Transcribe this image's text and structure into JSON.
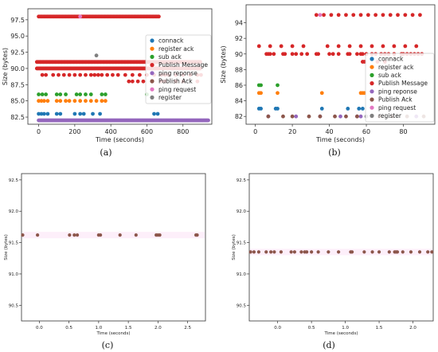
{
  "series_colors": {
    "connack": "#1f77b4",
    "register ack": "#ff7f0e",
    "sub ack": "#2ca02c",
    "Publish Message": "#d62728",
    "ping reponse": "#9467bd",
    "Publish Ack": "#8c564b",
    "ping request": "#e377c2",
    "register": "#7f7f7f"
  },
  "chart_data": [
    {
      "type": "scatter",
      "caption": "(a)",
      "xlabel": "Time (seconds)",
      "ylabel": "Size (bytes)",
      "xlim": [
        -60,
        960
      ],
      "ylim": [
        81.4,
        99.2
      ],
      "xticks": [
        0,
        200,
        400,
        600,
        800
      ],
      "yticks": [
        82.5,
        85.0,
        87.5,
        90.0,
        92.5,
        95.0,
        97.5
      ],
      "ytick_labels": [
        "82.5",
        "85.0",
        "87.5",
        "90.0",
        "92.5",
        "95.0",
        "97.5"
      ],
      "grid": false,
      "legend_position": "right",
      "legend": [
        "connack",
        "register ack",
        "sub ack",
        "Publish Message",
        "ping reponse",
        "Publish Ack",
        "ping request",
        "register"
      ],
      "series": [
        {
          "name": "Publish Message",
          "ranges": [
            [
              0,
              670,
              98,
              6
            ],
            [
              -10,
              900,
              91,
              6
            ],
            [
              -10,
              900,
              90,
              6
            ]
          ],
          "points": [
            [
              20,
              89
            ],
            [
              40,
              89
            ],
            [
              80,
              89
            ],
            [
              110,
              89
            ],
            [
              140,
              89
            ],
            [
              170,
              89
            ],
            [
              200,
              89
            ],
            [
              230,
              89
            ],
            [
              260,
              89
            ],
            [
              290,
              89
            ],
            [
              310,
              89
            ],
            [
              330,
              89
            ],
            [
              350,
              89
            ],
            [
              380,
              89
            ],
            [
              410,
              89
            ],
            [
              440,
              89
            ],
            [
              480,
              89
            ],
            [
              520,
              89
            ],
            [
              560,
              89
            ],
            [
              600,
              89
            ],
            [
              640,
              89
            ],
            [
              680,
              89
            ],
            [
              700,
              89
            ],
            [
              720,
              89
            ],
            [
              760,
              89
            ],
            [
              800,
              89
            ],
            [
              840,
              89
            ],
            [
              880,
              89
            ],
            [
              900,
              89
            ],
            [
              500,
              88
            ],
            [
              520,
              88
            ],
            [
              550,
              88
            ],
            [
              580,
              88
            ],
            [
              680,
              88
            ],
            [
              700,
              88
            ],
            [
              760,
              88
            ],
            [
              800,
              88
            ],
            [
              880,
              88
            ]
          ]
        },
        {
          "name": "sub ack",
          "points": [
            [
              0,
              86
            ],
            [
              20,
              86
            ],
            [
              40,
              86
            ],
            [
              100,
              86
            ],
            [
              120,
              86
            ],
            [
              150,
              86
            ],
            [
              210,
              86
            ],
            [
              230,
              86
            ],
            [
              260,
              86
            ],
            [
              290,
              86
            ],
            [
              350,
              86
            ],
            [
              370,
              86
            ],
            [
              600,
              86
            ]
          ]
        },
        {
          "name": "register ack",
          "points": [
            [
              0,
              85
            ],
            [
              15,
              85
            ],
            [
              30,
              85
            ],
            [
              50,
              85
            ],
            [
              100,
              85
            ],
            [
              120,
              85
            ],
            [
              150,
              85
            ],
            [
              170,
              85
            ],
            [
              200,
              85
            ],
            [
              230,
              85
            ],
            [
              260,
              85
            ],
            [
              290,
              85
            ],
            [
              320,
              85
            ],
            [
              350,
              85
            ],
            [
              370,
              85
            ]
          ]
        },
        {
          "name": "connack",
          "points": [
            [
              0,
              83
            ],
            [
              15,
              83
            ],
            [
              30,
              83
            ],
            [
              50,
              83
            ],
            [
              100,
              83
            ],
            [
              120,
              83
            ],
            [
              200,
              83
            ],
            [
              230,
              83
            ],
            [
              250,
              83
            ],
            [
              300,
              83
            ],
            [
              340,
              83
            ],
            [
              640,
              83
            ],
            [
              660,
              83
            ]
          ]
        },
        {
          "name": "ping reponse",
          "ranges": [
            [
              0,
              940,
              82,
              4
            ]
          ]
        },
        {
          "name": "register",
          "points": [
            [
              320,
              92
            ]
          ]
        },
        {
          "name": "ping request",
          "points": [
            [
              230,
              98
            ]
          ]
        }
      ]
    },
    {
      "type": "scatter",
      "caption": "(b)",
      "xlabel": "Time (seconds)",
      "ylabel": "Size (bytes)",
      "xlim": [
        -5,
        97
      ],
      "ylim": [
        81,
        96.3
      ],
      "xticks": [
        0,
        20,
        40,
        60,
        80
      ],
      "yticks": [
        82,
        84,
        86,
        88,
        90,
        92,
        94
      ],
      "ytick_labels": [
        "82",
        "84",
        "86",
        "88",
        "90",
        "92",
        "94"
      ],
      "grid": false,
      "legend_position": "right",
      "legend": [
        "connack",
        "register ack",
        "sub ack",
        "Publish Message",
        "ping reponse",
        "Publish Ack",
        "ping request",
        "register"
      ],
      "series": [
        {
          "name": "Publish Message",
          "ranges": [
            [
              33,
              92,
              95,
              4
            ],
            [
              2,
              26,
              91,
              6
            ],
            [
              39,
              92,
              91,
              6
            ]
          ],
          "points": [
            [
              6,
              90
            ],
            [
              7,
              90
            ],
            [
              8,
              90
            ],
            [
              10,
              90
            ],
            [
              15,
              90
            ],
            [
              16,
              90
            ],
            [
              20,
              90
            ],
            [
              22,
              90
            ],
            [
              25,
              90
            ],
            [
              28,
              90
            ],
            [
              33,
              90
            ],
            [
              34,
              90
            ],
            [
              40,
              90
            ],
            [
              42,
              90
            ],
            [
              45,
              90
            ],
            [
              50,
              90
            ],
            [
              51,
              90
            ],
            [
              55,
              90
            ],
            [
              57,
              90
            ],
            [
              58,
              90
            ],
            [
              60,
              90
            ],
            [
              63,
              90
            ],
            [
              65,
              90
            ],
            [
              68,
              90
            ],
            [
              70,
              90
            ],
            [
              72,
              90
            ],
            [
              75,
              90
            ],
            [
              79,
              90
            ],
            [
              80,
              90
            ],
            [
              82,
              90
            ],
            [
              84,
              90
            ],
            [
              86,
              90
            ],
            [
              88,
              90
            ],
            [
              90,
              90
            ],
            [
              58,
              89
            ],
            [
              59,
              89
            ],
            [
              66,
              89
            ],
            [
              70,
              89
            ]
          ]
        },
        {
          "name": "sub ack",
          "points": [
            [
              2,
              86
            ],
            [
              3,
              86
            ],
            [
              12,
              86
            ]
          ]
        },
        {
          "name": "register ack",
          "points": [
            [
              2,
              85
            ],
            [
              3,
              85
            ],
            [
              12,
              85
            ],
            [
              36,
              85
            ],
            [
              57,
              85
            ],
            [
              58,
              85
            ],
            [
              59,
              85
            ]
          ]
        },
        {
          "name": "connack",
          "points": [
            [
              2,
              83
            ],
            [
              3,
              83
            ],
            [
              11,
              83
            ],
            [
              12,
              83
            ],
            [
              36,
              83
            ],
            [
              50,
              83
            ],
            [
              56,
              83
            ],
            [
              58,
              83
            ]
          ]
        },
        {
          "name": "ping reponse",
          "points": [
            [
              7,
              82
            ],
            [
              22,
              82
            ],
            [
              35,
              82
            ],
            [
              46,
              82
            ],
            [
              55,
              82
            ],
            [
              57,
              82
            ],
            [
              87,
              82
            ]
          ]
        },
        {
          "name": "Publish Ack",
          "points": [
            [
              7,
              82
            ],
            [
              15,
              82
            ],
            [
              20,
              82
            ],
            [
              29,
              82
            ],
            [
              35,
              82
            ],
            [
              43,
              82
            ],
            [
              49,
              82
            ],
            [
              55,
              82
            ],
            [
              63,
              82
            ],
            [
              67,
              82
            ],
            [
              74,
              82
            ],
            [
              82,
              82
            ],
            [
              91,
              82
            ]
          ]
        },
        {
          "name": "register",
          "points": [
            [
              60,
              82
            ]
          ]
        },
        {
          "name": "ping request",
          "points": [
            [
              35,
              95
            ]
          ]
        }
      ]
    },
    {
      "type": "scatter",
      "caption": "(c)",
      "xlabel": "Time (seconds)",
      "ylabel": "Size (bytes)",
      "xlim": [
        -0.3,
        2.8
      ],
      "ylim": [
        90.25,
        92.6
      ],
      "xticks": [
        0.0,
        0.5,
        1.0,
        1.5,
        2.0,
        2.5
      ],
      "xtick_labels": [
        "0.0",
        "0.5",
        "1.0",
        "1.5",
        "2.0",
        "2.5"
      ],
      "yticks": [
        90.5,
        91.0,
        91.5,
        92.0,
        92.5
      ],
      "ytick_labels": [
        "90.5",
        "91.0",
        "91.5",
        "92.0",
        "92.5"
      ],
      "grid": false,
      "series": [
        {
          "name": "Publish Ack",
          "points": [
            [
              -0.28,
              91.62
            ],
            [
              -0.03,
              91.62
            ],
            [
              0.51,
              91.62
            ],
            [
              0.59,
              91.62
            ],
            [
              0.64,
              91.62
            ],
            [
              1.0,
              91.62
            ],
            [
              1.03,
              91.62
            ],
            [
              1.36,
              91.62
            ],
            [
              1.63,
              91.62
            ],
            [
              1.97,
              91.62
            ],
            [
              2.0,
              91.62
            ],
            [
              2.03,
              91.62
            ],
            [
              2.64,
              91.62
            ],
            [
              2.66,
              91.62
            ]
          ]
        }
      ]
    },
    {
      "type": "scatter",
      "caption": "(d)",
      "xlabel": "Time (seconds)",
      "ylabel": "Size (bytes)",
      "xlim": [
        -0.42,
        2.3
      ],
      "ylim": [
        90.25,
        92.6
      ],
      "xticks": [
        0.0,
        0.5,
        1.0,
        1.5,
        2.0
      ],
      "xtick_labels": [
        "0.0",
        "0.5",
        "1.0",
        "1.5",
        "2.0"
      ],
      "yticks": [
        90.5,
        91.0,
        91.5,
        92.0,
        92.5
      ],
      "ytick_labels": [
        "90.5",
        "91.0",
        "91.5",
        "92.0",
        "92.5"
      ],
      "grid": false,
      "series": [
        {
          "name": "Publish Ack",
          "points": [
            [
              -0.4,
              91.35
            ],
            [
              -0.35,
              91.35
            ],
            [
              -0.28,
              91.35
            ],
            [
              -0.17,
              91.35
            ],
            [
              -0.1,
              91.35
            ],
            [
              -0.05,
              91.35
            ],
            [
              0.05,
              91.35
            ],
            [
              0.2,
              91.35
            ],
            [
              0.25,
              91.35
            ],
            [
              0.35,
              91.35
            ],
            [
              0.4,
              91.35
            ],
            [
              0.43,
              91.35
            ],
            [
              0.5,
              91.35
            ],
            [
              0.6,
              91.35
            ],
            [
              0.75,
              91.35
            ],
            [
              0.9,
              91.35
            ],
            [
              1.08,
              91.35
            ],
            [
              1.1,
              91.35
            ],
            [
              1.28,
              91.35
            ],
            [
              1.4,
              91.35
            ],
            [
              1.5,
              91.35
            ],
            [
              1.65,
              91.35
            ],
            [
              1.73,
              91.35
            ],
            [
              1.75,
              91.35
            ],
            [
              1.77,
              91.35
            ],
            [
              1.85,
              91.35
            ],
            [
              1.97,
              91.35
            ],
            [
              2.1,
              91.35
            ],
            [
              2.22,
              91.35
            ],
            [
              2.28,
              91.35
            ]
          ]
        }
      ]
    }
  ]
}
